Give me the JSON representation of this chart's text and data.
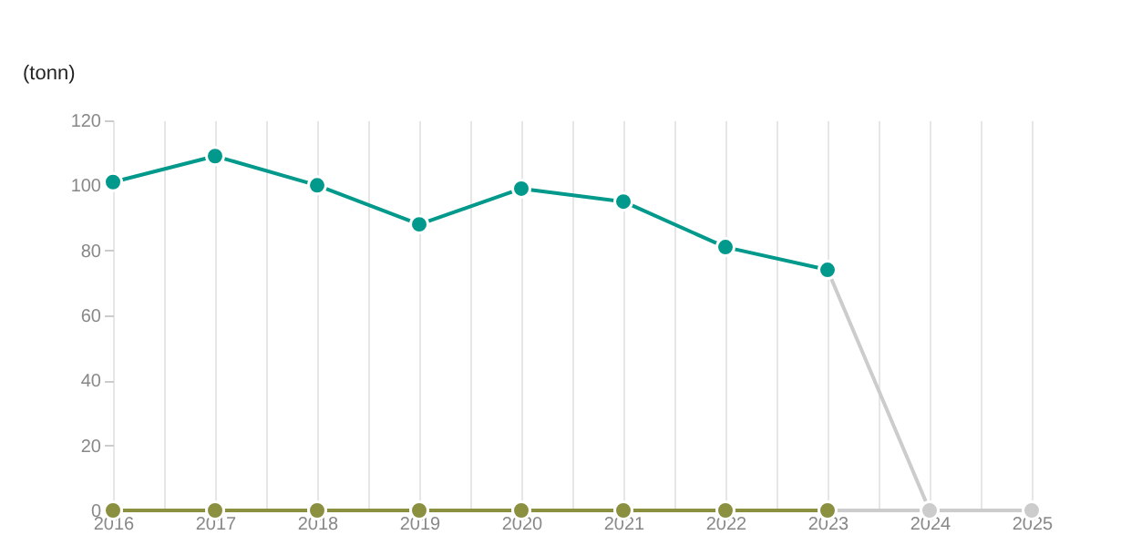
{
  "chart_data": {
    "type": "line",
    "ylabel": "(tonn)",
    "xlim": [
      2016,
      2025
    ],
    "xticks": [
      2016,
      {
        "value": 2016.5,
        "label": null
      },
      2017,
      {
        "value": 2017.5,
        "label": null
      },
      2018,
      {
        "value": 2018.5,
        "label": null
      },
      2019,
      {
        "value": 2019.5,
        "label": null
      },
      2020,
      {
        "value": 2020.5,
        "label": null
      },
      2021,
      {
        "value": 2021.5,
        "label": null
      },
      2022,
      {
        "value": 2022.5,
        "label": null
      },
      2023,
      {
        "value": 2023.5,
        "label": null
      },
      2024,
      {
        "value": 2024.5,
        "label": null
      },
      2025
    ],
    "ylim": [
      0,
      120
    ],
    "yticks": [
      0,
      20,
      40,
      60,
      80,
      100,
      120
    ],
    "grid": "x",
    "marker": "circle",
    "line_style": "solid",
    "series": [
      {
        "color": "#cccccc",
        "x": [
          2023,
          2024,
          2025
        ],
        "values": [
          74,
          0,
          0
        ]
      },
      {
        "color": "#cccccc",
        "x": [
          2023,
          2024,
          2025
        ],
        "values": [
          0,
          0,
          0
        ]
      },
      {
        "color": "#8a9040",
        "x": [
          2016,
          2017,
          2018,
          2019,
          2020,
          2021,
          2022,
          2023
        ],
        "values": [
          0,
          0,
          0,
          0,
          0,
          0,
          0,
          0
        ]
      },
      {
        "color": "#00998c",
        "x": [
          2016,
          2017,
          2018,
          2019,
          2020,
          2021,
          2022,
          2023
        ],
        "values": [
          101,
          109,
          100,
          88,
          99,
          95,
          81,
          74
        ]
      }
    ]
  }
}
